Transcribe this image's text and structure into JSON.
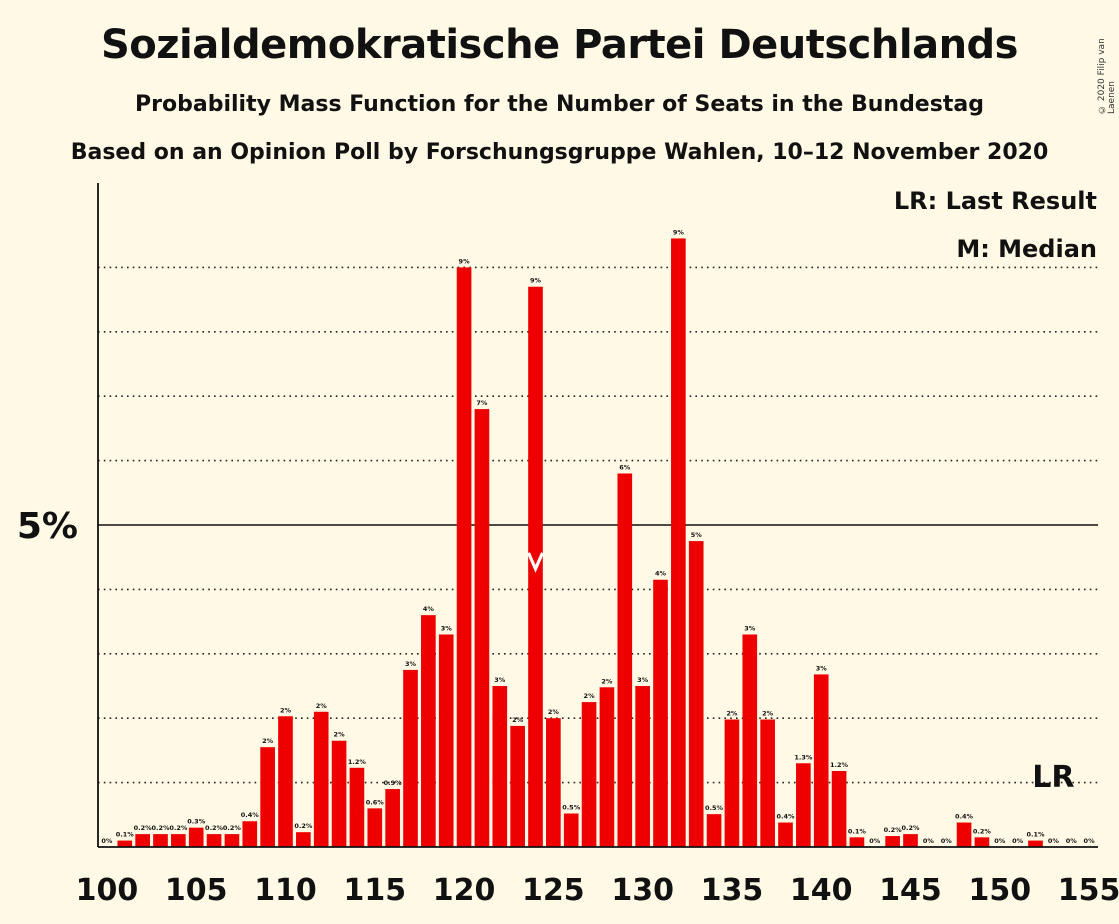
{
  "title": "Sozialdemokratische Partei Deutschlands",
  "subtitle1": "Probability Mass Function for the Number of Seats in the Bundestag",
  "subtitle2": "Based on an Opinion Poll by Forschungsgruppe Wahlen, 10–12 November 2020",
  "copyright": "© 2020 Filip van Laenen",
  "legend": {
    "lr": "LR: Last Result",
    "m": "M: Median"
  },
  "colors": {
    "bar": "#ee0000",
    "background": "#fff9e5",
    "text": "#111111"
  },
  "chart_data": {
    "type": "bar",
    "x": [
      100,
      101,
      102,
      103,
      104,
      105,
      106,
      107,
      108,
      109,
      110,
      111,
      112,
      113,
      114,
      115,
      116,
      117,
      118,
      119,
      120,
      121,
      122,
      123,
      124,
      125,
      126,
      127,
      128,
      129,
      130,
      131,
      132,
      133,
      134,
      135,
      136,
      137,
      138,
      139,
      140,
      141,
      142,
      143,
      144,
      145,
      146,
      147,
      148,
      149,
      150,
      151,
      152,
      153,
      154,
      155
    ],
    "values": [
      0,
      0.1,
      0.2,
      0.2,
      0.2,
      0.3,
      0.2,
      0.2,
      0.4,
      1.55,
      2.03,
      0.23,
      2.1,
      1.65,
      1.23,
      0.6,
      0.9,
      2.75,
      3.6,
      3.3,
      9.0,
      6.8,
      2.5,
      1.88,
      8.7,
      2.0,
      0.52,
      2.25,
      2.48,
      5.8,
      2.5,
      4.15,
      9.45,
      4.75,
      0.51,
      1.98,
      3.3,
      1.98,
      0.38,
      1.3,
      2.68,
      1.18,
      0.15,
      0,
      0.17,
      0.2,
      0,
      0,
      0.38,
      0.15,
      0,
      0,
      0.1,
      0,
      0,
      0
    ],
    "labels": [
      "0%",
      "0.1%",
      "0.2%",
      "0.2%",
      "0.2%",
      "0.3%",
      "0.2%",
      "0.2%",
      "0.4%",
      "2%",
      "2%",
      "0.2%",
      "2%",
      "2%",
      "1.2%",
      "0.6%",
      "0.9%",
      "3%",
      "4%",
      "3%",
      "9%",
      "7%",
      "3%",
      "2%",
      "9%",
      "2%",
      "0.5%",
      "2%",
      "2%",
      "6%",
      "3%",
      "4%",
      "9%",
      "5%",
      "0.5%",
      "2%",
      "3%",
      "2%",
      "0.4%",
      "1.3%",
      "3%",
      "1.2%",
      "0.1%",
      "0%",
      "0.2%",
      "0.2%",
      "0%",
      "0%",
      "0.4%",
      "0.2%",
      "0%",
      "0%",
      "0.1%",
      "0%",
      "0%",
      "0%"
    ],
    "x_ticks": [
      "100",
      "105",
      "110",
      "115",
      "120",
      "125",
      "130",
      "135",
      "140",
      "145",
      "150",
      "155"
    ],
    "y_tick_label": "5%",
    "y_tick_value": 5,
    "ylim": [
      0,
      10.2
    ],
    "grid": "dotted lines every 1%",
    "median_seat": 124,
    "last_result_seat": 153,
    "last_result_label": "LR"
  }
}
